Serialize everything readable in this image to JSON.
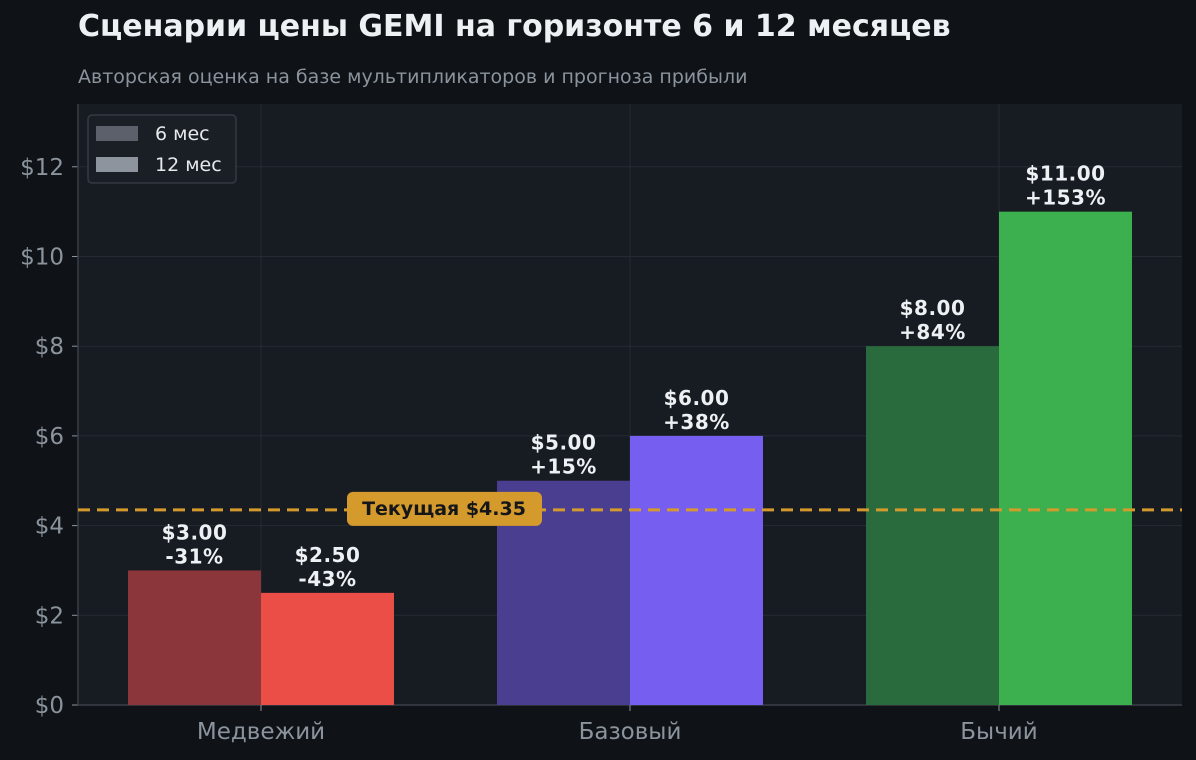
{
  "title": "Сценарии цены GEMI на горизонте 6 и 12 месяцев",
  "subtitle": "Авторская оценка на базе мультипликаторов и прогноза прибыли",
  "chart_data": {
    "type": "bar",
    "categories": [
      "Медвежий",
      "Базовый",
      "Бычий"
    ],
    "series": [
      {
        "name": "6 мес",
        "values": [
          3.0,
          5.0,
          8.0
        ],
        "labels": [
          "$3.00",
          "$5.00",
          "$8.00"
        ],
        "changes": [
          "-31%",
          "+15%",
          "+84%"
        ],
        "colors": [
          "#8b363a",
          "#493e8f",
          "#2a6b3d"
        ]
      },
      {
        "name": "12 мес",
        "values": [
          2.5,
          6.0,
          11.0
        ],
        "labels": [
          "$2.50",
          "$6.00",
          "$11.00"
        ],
        "changes": [
          "-43%",
          "+38%",
          "+153%"
        ],
        "colors": [
          "#ea4e46",
          "#765ff0",
          "#3caf4e"
        ]
      }
    ],
    "legend_colors": [
      "#5c606a",
      "#8d949d"
    ],
    "reference_line": {
      "value": 4.35,
      "label": "Текущая $4.35",
      "color": "#d59a2c"
    },
    "ylim": [
      0,
      13.4
    ],
    "yticks": [
      0,
      2,
      4,
      6,
      8,
      10,
      12
    ],
    "ytick_labels": [
      "$0",
      "$2",
      "$4",
      "$6",
      "$8",
      "$10",
      "$12"
    ],
    "xlabel": "",
    "ylabel": "",
    "grid": true,
    "legend": "top-left"
  }
}
